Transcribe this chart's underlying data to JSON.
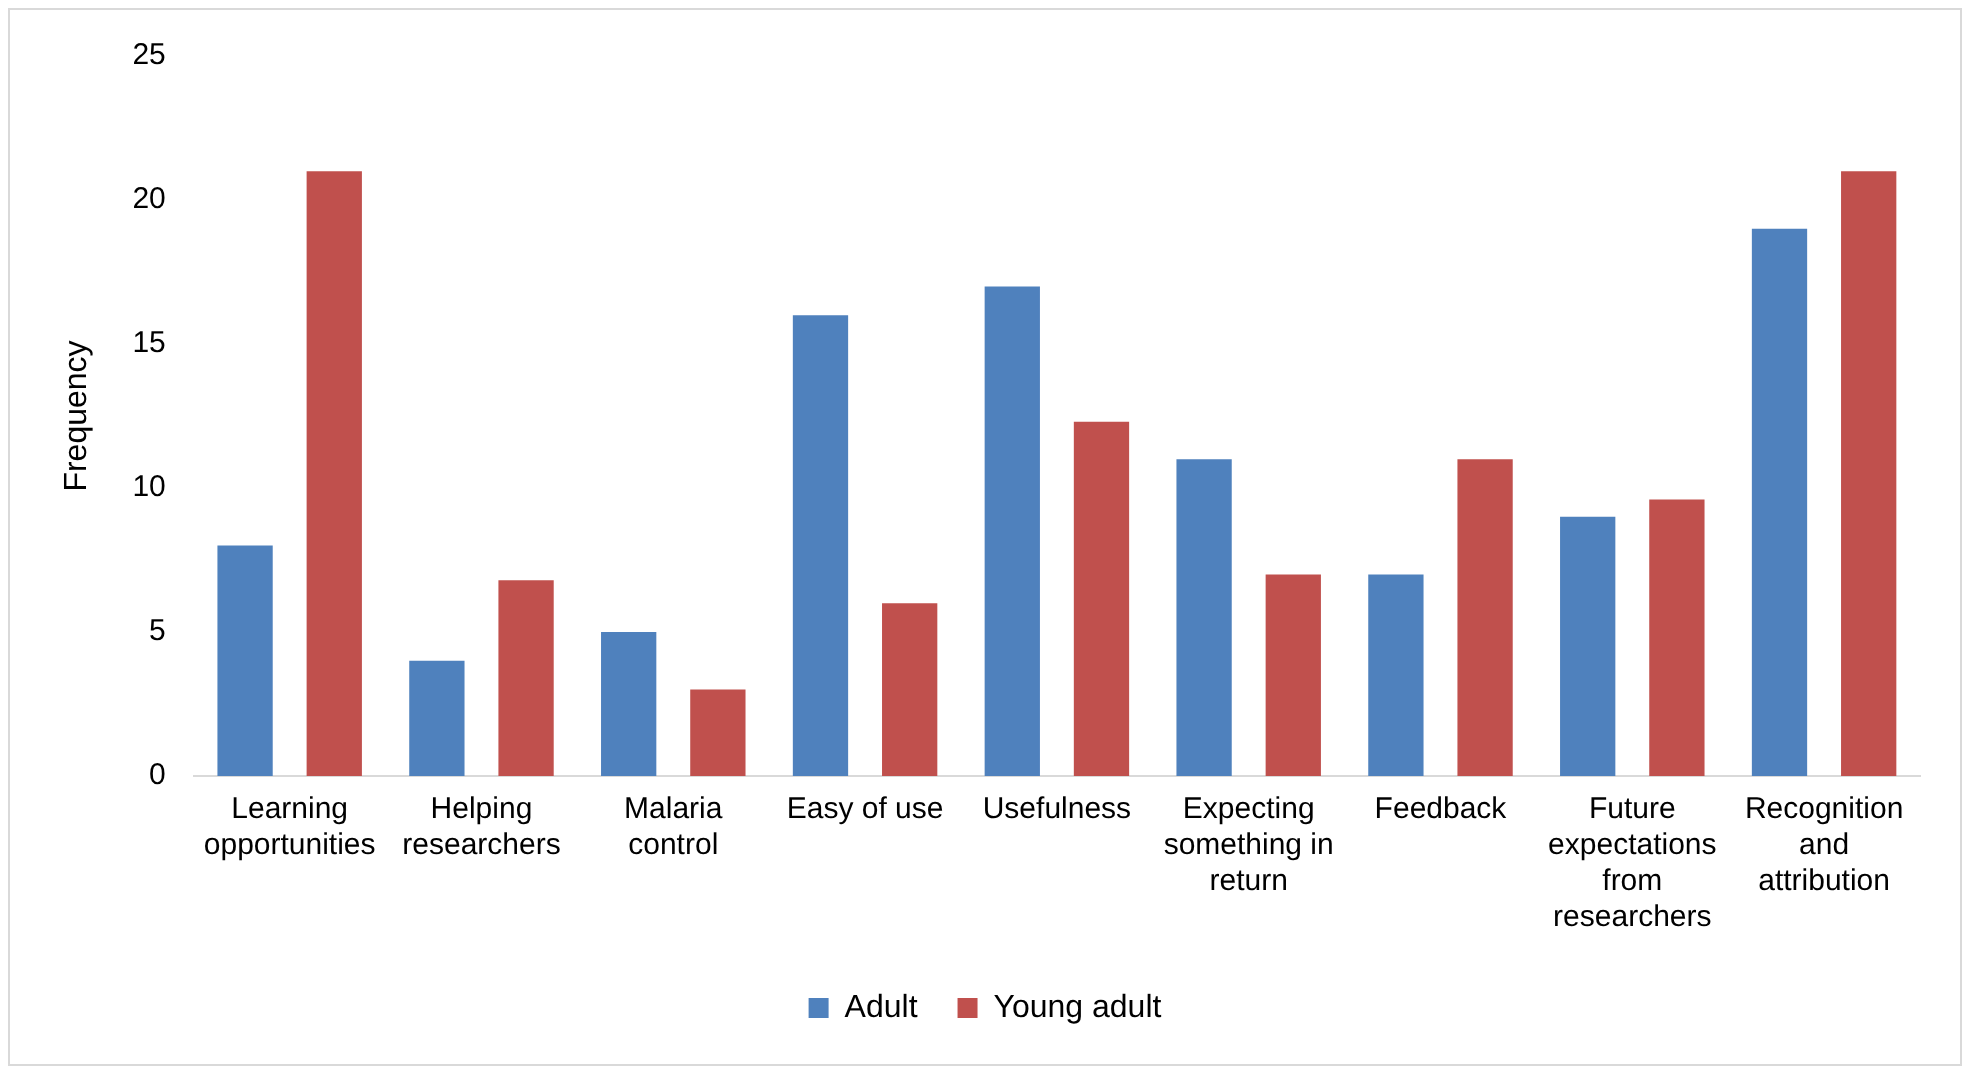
{
  "chart_data": {
    "type": "bar",
    "ylabel": "Frequency",
    "categories": [
      "Learning opportunities",
      "Helping researchers",
      "Malaria control",
      "Easy of use",
      "Usefulness",
      "Expecting something in return",
      "Feedback",
      "Future expectations from researchers",
      "Recognition and attribution"
    ],
    "series": [
      {
        "name": "Adult",
        "color": "#4f81bd",
        "values": [
          8,
          4,
          5,
          16,
          17,
          11,
          7,
          9,
          19
        ]
      },
      {
        "name": "Young adult",
        "color": "#c0504d",
        "values": [
          21,
          6.8,
          3,
          6,
          12.3,
          7,
          11,
          9.6,
          21
        ]
      }
    ],
    "ylim": [
      0,
      25
    ],
    "yticks": [
      0,
      5,
      10,
      15,
      20,
      25
    ],
    "grid": false,
    "legend": "bottom"
  }
}
